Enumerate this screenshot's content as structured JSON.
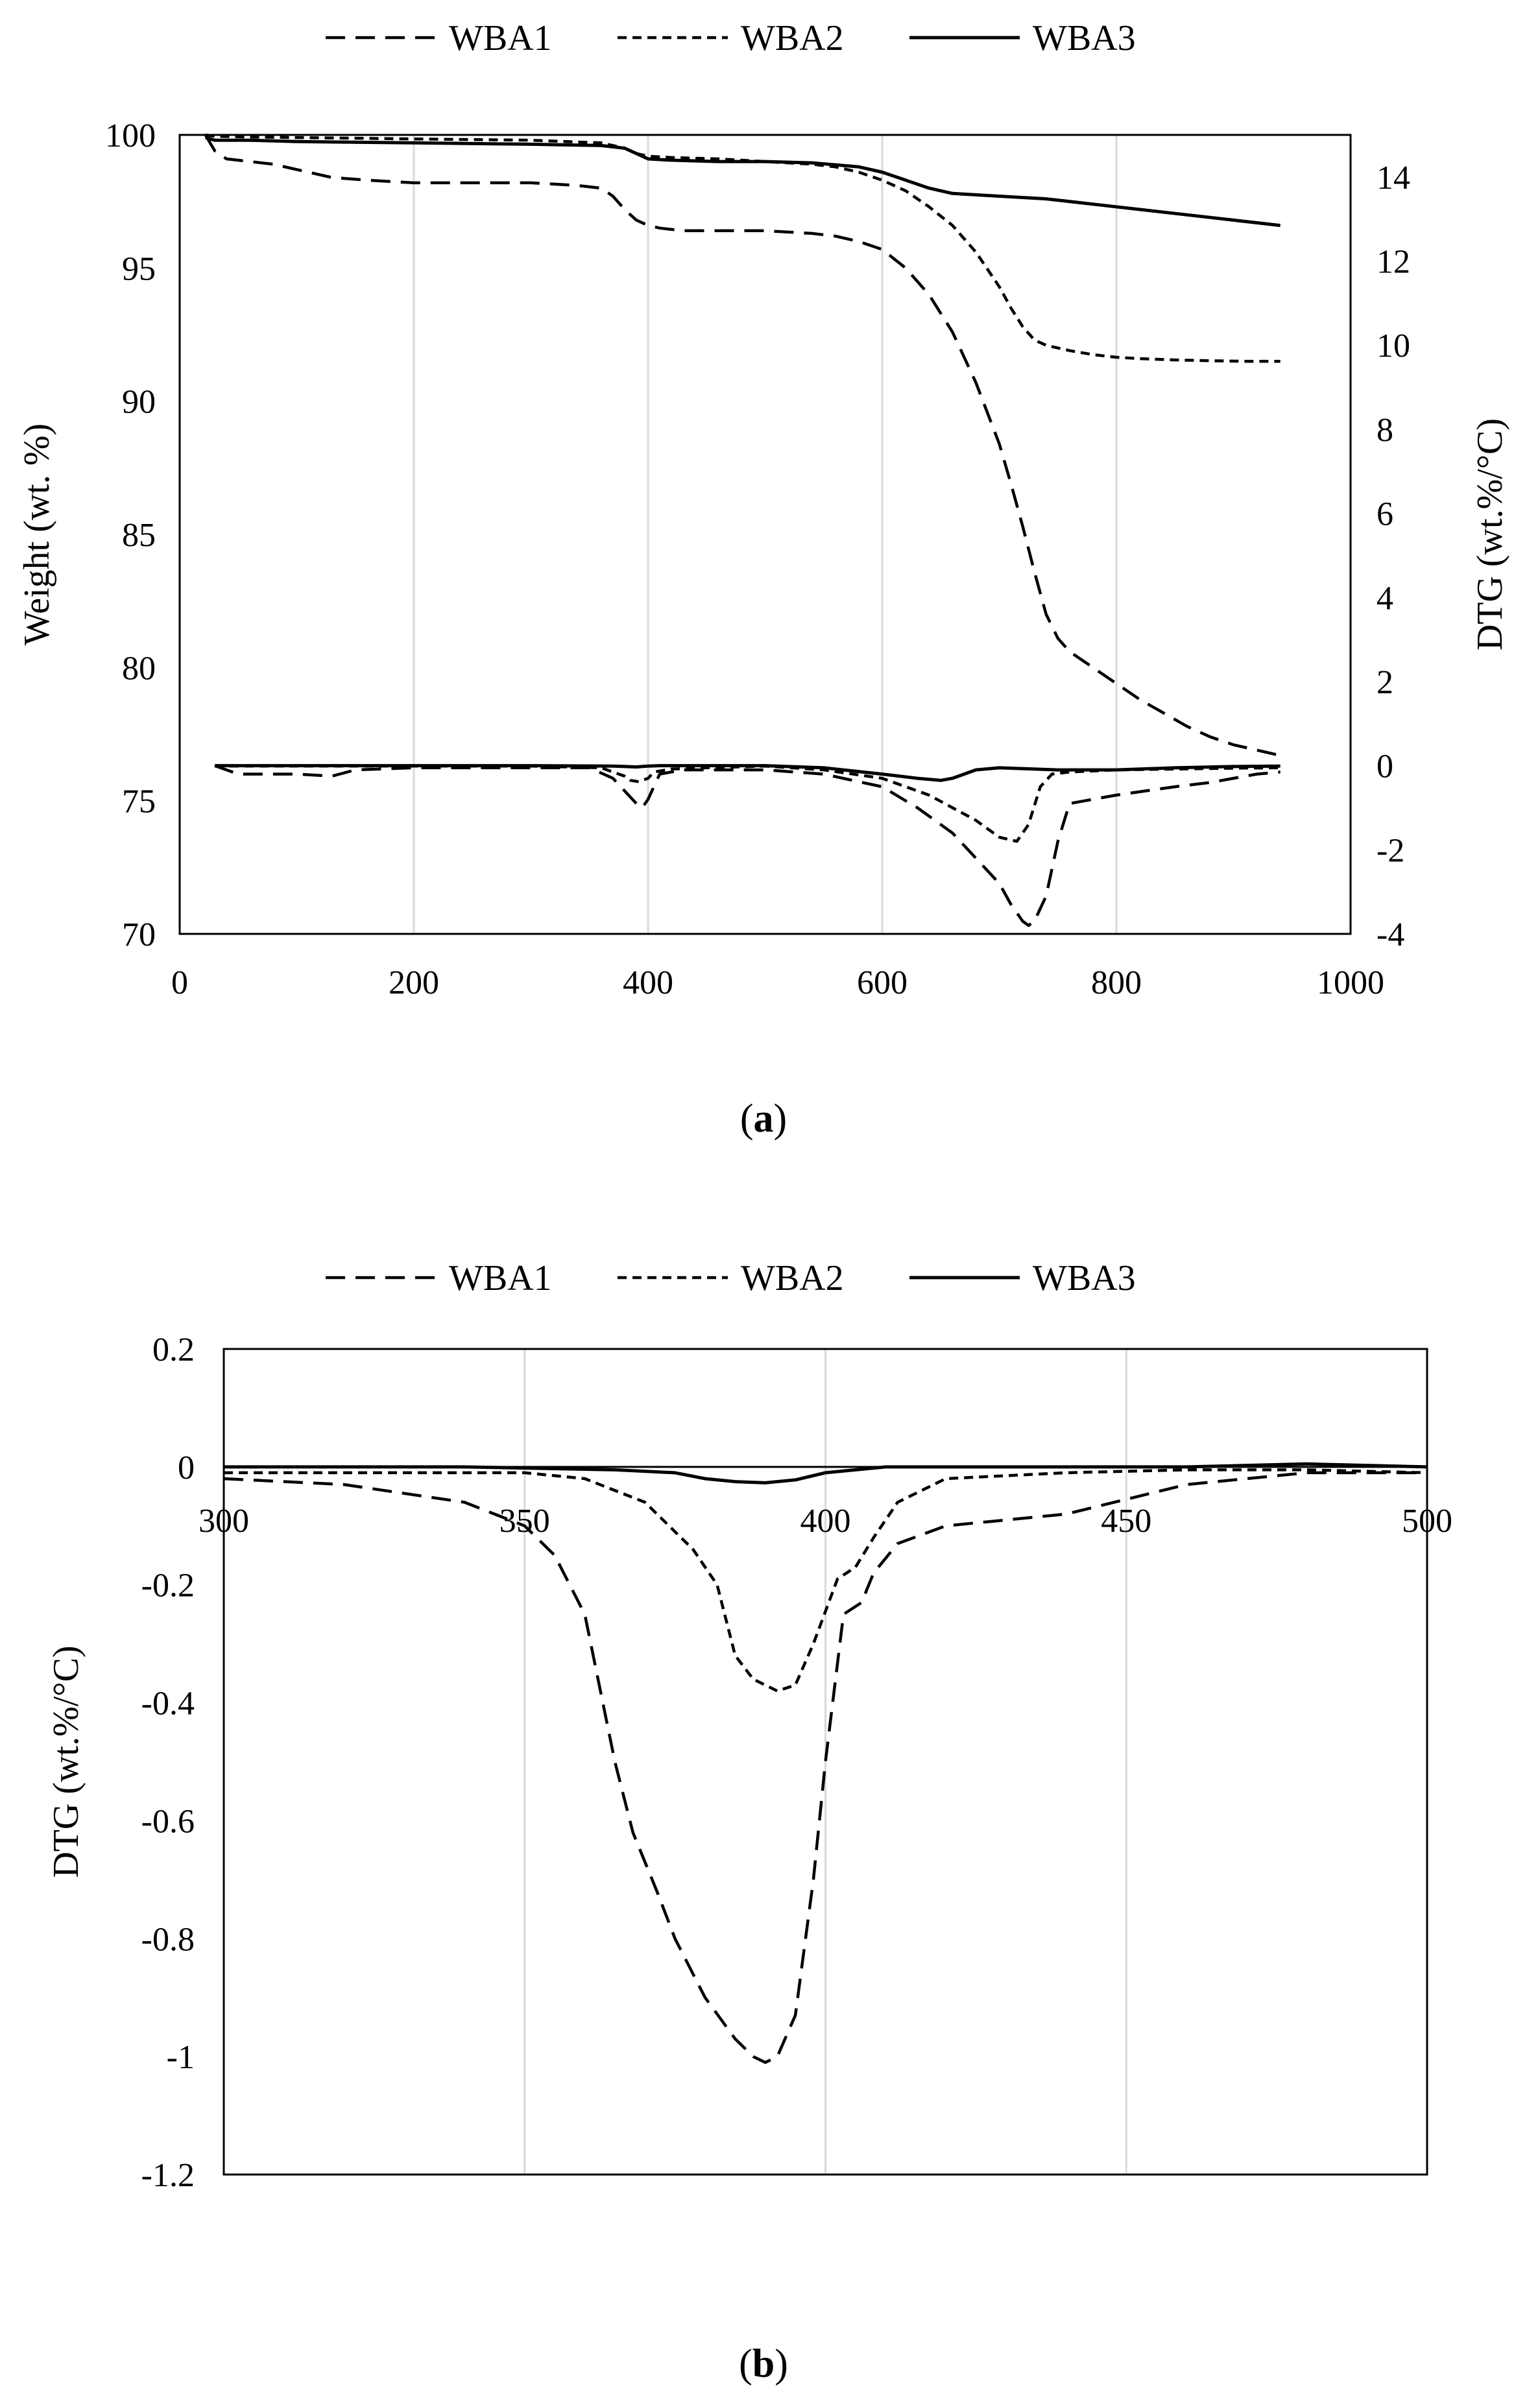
{
  "colors": {
    "series": "#000000",
    "grid": "#d9d9d9",
    "axis": "#000000",
    "background": "#ffffff"
  },
  "chart_data": [
    {
      "panel": "a",
      "type": "line",
      "caption_label": "a",
      "caption_open": "(",
      "caption_close": ")",
      "xlabel": "",
      "ylabel": "Weight (wt. %)",
      "y2label": "DTG (wt.%/°C)",
      "xlim": [
        0,
        1000
      ],
      "ylim": [
        70,
        100
      ],
      "y2lim": [
        -4,
        15
      ],
      "xticks": [
        0,
        200,
        400,
        600,
        800,
        1000
      ],
      "yticks": [
        70,
        75,
        80,
        85,
        90,
        95,
        100
      ],
      "y2ticks": [
        -4,
        -2,
        0,
        2,
        4,
        6,
        8,
        10,
        12,
        14
      ],
      "xtick_labels": [
        "0",
        "200",
        "400",
        "600",
        "800",
        "1000"
      ],
      "ytick_labels": [
        "70",
        "75",
        "80",
        "85",
        "90",
        "95",
        "100"
      ],
      "y2tick_labels": [
        "-4",
        "-2",
        "0",
        "2",
        "4",
        "6",
        "8",
        "10",
        "12",
        "14"
      ],
      "grid": "vertical",
      "legend_position": "top-center",
      "legend": [
        {
          "name": "WBA1",
          "style": "long-dash"
        },
        {
          "name": "WBA2",
          "style": "short-dash"
        },
        {
          "name": "WBA3",
          "style": "solid"
        }
      ],
      "series": [
        {
          "name": "WBA1",
          "style": "long-dash",
          "axis": "left",
          "quantity": "weight",
          "x": [
            22,
            30,
            40,
            60,
            80,
            100,
            130,
            160,
            200,
            250,
            300,
            340,
            360,
            370,
            380,
            390,
            400,
            410,
            430,
            460,
            500,
            540,
            560,
            580,
            600,
            620,
            640,
            660,
            680,
            700,
            710,
            720,
            730,
            740,
            750,
            760,
            780,
            800,
            820,
            840,
            860,
            880,
            900,
            920,
            940
          ],
          "y": [
            100,
            99.4,
            99.1,
            99.0,
            98.9,
            98.7,
            98.4,
            98.3,
            98.2,
            98.2,
            98.2,
            98.1,
            98.0,
            97.7,
            97.2,
            96.8,
            96.6,
            96.5,
            96.4,
            96.4,
            96.4,
            96.3,
            96.2,
            96.0,
            95.7,
            95.0,
            94.0,
            92.6,
            90.7,
            88.4,
            86.9,
            85.3,
            83.6,
            82.0,
            81.1,
            80.6,
            80.0,
            79.4,
            78.8,
            78.3,
            77.8,
            77.4,
            77.1,
            76.9,
            76.7
          ]
        },
        {
          "name": "WBA2",
          "style": "short-dash",
          "axis": "left",
          "quantity": "weight",
          "x": [
            22,
            30,
            60,
            100,
            200,
            300,
            360,
            380,
            390,
            400,
            420,
            460,
            500,
            540,
            560,
            580,
            600,
            620,
            640,
            660,
            680,
            700,
            710,
            720,
            730,
            740,
            760,
            780,
            800,
            820,
            850,
            880,
            910,
            940
          ],
          "y": [
            100,
            99.95,
            99.92,
            99.9,
            99.85,
            99.8,
            99.7,
            99.5,
            99.3,
            99.2,
            99.15,
            99.1,
            99.0,
            98.9,
            98.8,
            98.6,
            98.3,
            97.9,
            97.3,
            96.6,
            95.6,
            94.3,
            93.5,
            92.8,
            92.3,
            92.1,
            91.9,
            91.75,
            91.65,
            91.6,
            91.55,
            91.52,
            91.5,
            91.5
          ]
        },
        {
          "name": "WBA3",
          "style": "solid",
          "axis": "left",
          "quantity": "weight",
          "x": [
            22,
            30,
            60,
            100,
            200,
            300,
            360,
            380,
            390,
            400,
            420,
            460,
            500,
            540,
            580,
            600,
            620,
            640,
            660,
            680,
            700,
            740,
            780,
            820,
            860,
            900,
            940
          ],
          "y": [
            99.9,
            99.8,
            99.8,
            99.75,
            99.7,
            99.65,
            99.6,
            99.5,
            99.3,
            99.1,
            99.05,
            99.0,
            99.0,
            98.95,
            98.8,
            98.6,
            98.3,
            98.0,
            97.8,
            97.75,
            97.7,
            97.6,
            97.4,
            97.2,
            97.0,
            96.8,
            96.6
          ]
        },
        {
          "name": "WBA1",
          "style": "long-dash",
          "axis": "right",
          "quantity": "DTG",
          "x": [
            30,
            40,
            50,
            60,
            80,
            100,
            130,
            150,
            200,
            300,
            350,
            370,
            380,
            390,
            395,
            400,
            410,
            430,
            500,
            550,
            600,
            630,
            660,
            680,
            700,
            710,
            720,
            725,
            730,
            740,
            750,
            760,
            780,
            800,
            850,
            880,
            900,
            920,
            940
          ],
          "y": [
            0.0,
            -0.1,
            -0.2,
            -0.2,
            -0.2,
            -0.2,
            -0.25,
            -0.1,
            -0.05,
            -0.05,
            -0.05,
            -0.3,
            -0.6,
            -0.9,
            -1.0,
            -0.8,
            -0.2,
            -0.1,
            -0.1,
            -0.2,
            -0.5,
            -1.0,
            -1.6,
            -2.2,
            -2.8,
            -3.3,
            -3.7,
            -3.8,
            -3.7,
            -3.1,
            -1.8,
            -0.9,
            -0.8,
            -0.7,
            -0.5,
            -0.4,
            -0.3,
            -0.2,
            -0.15
          ]
        },
        {
          "name": "WBA2",
          "style": "short-dash",
          "axis": "right",
          "quantity": "DTG",
          "x": [
            30,
            60,
            100,
            200,
            300,
            360,
            380,
            385,
            392,
            400,
            405,
            420,
            450,
            500,
            550,
            600,
            640,
            680,
            700,
            715,
            725,
            735,
            745,
            760,
            800,
            850,
            900,
            940
          ],
          "y": [
            -0.01,
            -0.01,
            -0.01,
            -0.01,
            -0.01,
            -0.05,
            -0.25,
            -0.35,
            -0.38,
            -0.3,
            -0.15,
            -0.08,
            -0.05,
            -0.01,
            -0.1,
            -0.3,
            -0.7,
            -1.3,
            -1.7,
            -1.8,
            -1.4,
            -0.5,
            -0.2,
            -0.15,
            -0.1,
            -0.08,
            -0.06,
            -0.05
          ]
        },
        {
          "name": "WBA3",
          "style": "solid",
          "axis": "right",
          "quantity": "DTG",
          "x": [
            30,
            100,
            200,
            300,
            370,
            380,
            390,
            395,
            400,
            410,
            450,
            500,
            550,
            600,
            630,
            650,
            660,
            680,
            700,
            750,
            800,
            850,
            900,
            940
          ],
          "y": [
            0.0,
            0.0,
            0.0,
            0.0,
            -0.01,
            -0.02,
            -0.03,
            -0.02,
            -0.01,
            0.0,
            0.0,
            0.0,
            -0.05,
            -0.2,
            -0.3,
            -0.35,
            -0.3,
            -0.1,
            -0.05,
            -0.1,
            -0.1,
            -0.05,
            -0.02,
            -0.01
          ]
        }
      ]
    },
    {
      "panel": "b",
      "type": "line",
      "caption_label": "b",
      "caption_open": "(",
      "caption_close": ")",
      "xlabel": "",
      "ylabel": "DTG (wt.%/°C)",
      "xlim": [
        300,
        500
      ],
      "ylim": [
        -1.2,
        0.2
      ],
      "xticks": [
        300,
        350,
        400,
        450,
        500
      ],
      "yticks": [
        -1.2,
        -1.0,
        -0.8,
        -0.6,
        -0.4,
        -0.2,
        0,
        0.2
      ],
      "xtick_labels": [
        "300",
        "350",
        "400",
        "450",
        "500"
      ],
      "ytick_labels": [
        "-1.2",
        "-1",
        "-0.8",
        "-0.6",
        "-0.4",
        "-0.2",
        "0",
        "0.2"
      ],
      "x_axis_crosses_at": 0,
      "grid": "vertical",
      "legend_position": "top-center",
      "legend": [
        {
          "name": "WBA1",
          "style": "long-dash"
        },
        {
          "name": "WBA2",
          "style": "short-dash"
        },
        {
          "name": "WBA3",
          "style": "solid"
        }
      ],
      "series": [
        {
          "name": "WBA1",
          "style": "long-dash",
          "x": [
            300,
            320,
            340,
            350,
            355,
            360,
            365,
            368,
            372,
            375,
            380,
            385,
            388,
            390,
            392,
            395,
            398,
            400,
            403,
            406,
            408,
            412,
            420,
            440,
            460,
            480,
            500
          ],
          "y": [
            -0.02,
            -0.03,
            -0.06,
            -0.1,
            -0.15,
            -0.25,
            -0.5,
            -0.62,
            -0.72,
            -0.8,
            -0.9,
            -0.97,
            -1.0,
            -1.01,
            -1.0,
            -0.93,
            -0.7,
            -0.5,
            -0.25,
            -0.23,
            -0.18,
            -0.13,
            -0.1,
            -0.08,
            -0.03,
            -0.01,
            -0.01
          ]
        },
        {
          "name": "WBA2",
          "style": "short-dash",
          "x": [
            300,
            320,
            350,
            360,
            370,
            378,
            382,
            385,
            388,
            392,
            395,
            398,
            402,
            405,
            408,
            412,
            420,
            440,
            460,
            480,
            500
          ],
          "y": [
            -0.01,
            -0.01,
            -0.01,
            -0.02,
            -0.06,
            -0.14,
            -0.2,
            -0.32,
            -0.36,
            -0.38,
            -0.37,
            -0.3,
            -0.19,
            -0.17,
            -0.12,
            -0.06,
            -0.02,
            -0.01,
            -0.005,
            -0.005,
            -0.01
          ]
        },
        {
          "name": "WBA3",
          "style": "solid",
          "x": [
            300,
            340,
            365,
            375,
            380,
            385,
            390,
            395,
            400,
            405,
            410,
            420,
            440,
            460,
            480,
            500
          ],
          "y": [
            0.0,
            0.0,
            -0.005,
            -0.01,
            -0.02,
            -0.025,
            -0.027,
            -0.022,
            -0.01,
            -0.005,
            0.0,
            0.0,
            0.0,
            0.0,
            0.005,
            0.0
          ]
        }
      ]
    }
  ]
}
